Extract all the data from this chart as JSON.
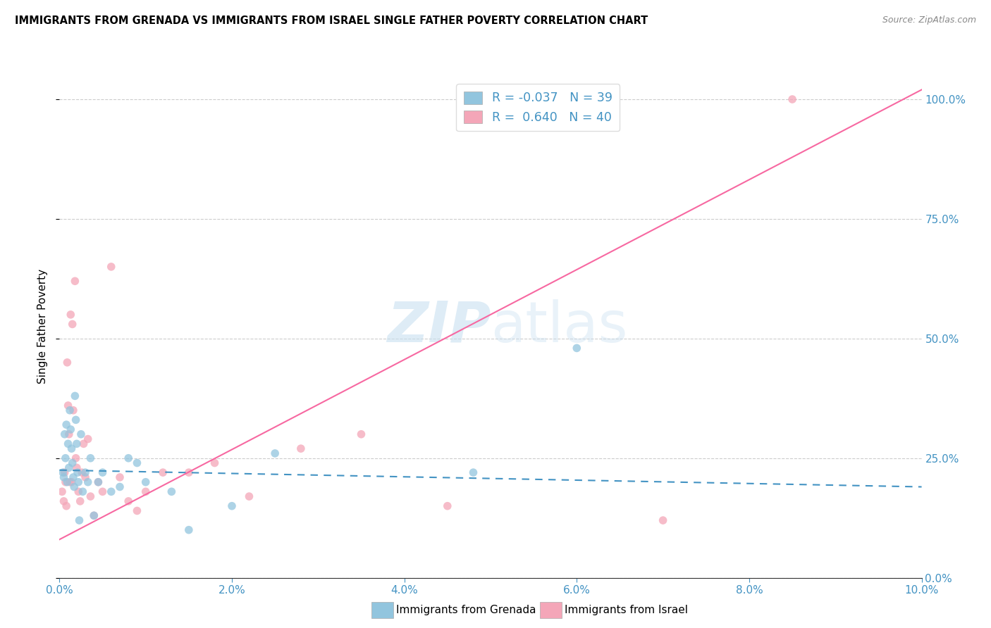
{
  "title": "IMMIGRANTS FROM GRENADA VS IMMIGRANTS FROM ISRAEL SINGLE FATHER POVERTY CORRELATION CHART",
  "source": "Source: ZipAtlas.com",
  "ylabel": "Single Father Poverty",
  "legend_label1": "Immigrants from Grenada",
  "legend_label2": "Immigrants from Israel",
  "R1": "-0.037",
  "N1": "39",
  "R2": "0.640",
  "N2": "40",
  "color1": "#92c5de",
  "color2": "#f4a6b8",
  "color1_line": "#4393c3",
  "color2_line": "#f768a1",
  "watermark_zip": "ZIP",
  "watermark_atlas": "atlas",
  "grenada_x": [
    0.0004,
    0.0005,
    0.0006,
    0.0007,
    0.0008,
    0.0009,
    0.001,
    0.0011,
    0.0012,
    0.0013,
    0.0014,
    0.0015,
    0.0016,
    0.0017,
    0.0018,
    0.0019,
    0.002,
    0.0021,
    0.0022,
    0.0023,
    0.0025,
    0.0027,
    0.003,
    0.0033,
    0.0036,
    0.004,
    0.0045,
    0.005,
    0.006,
    0.007,
    0.008,
    0.009,
    0.01,
    0.013,
    0.015,
    0.02,
    0.025,
    0.048,
    0.06
  ],
  "grenada_y": [
    0.22,
    0.21,
    0.3,
    0.25,
    0.32,
    0.2,
    0.28,
    0.23,
    0.35,
    0.31,
    0.27,
    0.24,
    0.21,
    0.19,
    0.38,
    0.33,
    0.28,
    0.22,
    0.2,
    0.12,
    0.3,
    0.18,
    0.22,
    0.2,
    0.25,
    0.13,
    0.2,
    0.22,
    0.18,
    0.19,
    0.25,
    0.24,
    0.2,
    0.18,
    0.1,
    0.15,
    0.26,
    0.22,
    0.48
  ],
  "israel_x": [
    0.0003,
    0.0005,
    0.0006,
    0.0007,
    0.0008,
    0.0009,
    0.001,
    0.0011,
    0.0012,
    0.0013,
    0.0014,
    0.0015,
    0.0016,
    0.0018,
    0.0019,
    0.002,
    0.0022,
    0.0024,
    0.0026,
    0.0028,
    0.003,
    0.0033,
    0.0036,
    0.004,
    0.0045,
    0.005,
    0.006,
    0.007,
    0.008,
    0.009,
    0.01,
    0.012,
    0.015,
    0.018,
    0.022,
    0.028,
    0.035,
    0.045,
    0.07,
    0.085
  ],
  "israel_y": [
    0.18,
    0.16,
    0.22,
    0.2,
    0.15,
    0.45,
    0.36,
    0.3,
    0.2,
    0.55,
    0.2,
    0.53,
    0.35,
    0.62,
    0.25,
    0.23,
    0.18,
    0.16,
    0.22,
    0.28,
    0.21,
    0.29,
    0.17,
    0.13,
    0.2,
    0.18,
    0.65,
    0.21,
    0.16,
    0.14,
    0.18,
    0.22,
    0.22,
    0.24,
    0.17,
    0.27,
    0.3,
    0.15,
    0.12,
    1.0
  ],
  "xmin": 0.0,
  "xmax": 0.1,
  "ymin": 0.0,
  "ymax": 1.05,
  "yticks": [
    0.0,
    0.25,
    0.5,
    0.75,
    1.0
  ],
  "xticks": [
    0.0,
    0.02,
    0.04,
    0.06,
    0.08,
    0.1
  ],
  "israel_line_x0": 0.0,
  "israel_line_x1": 0.1,
  "israel_line_y0": 0.08,
  "israel_line_y1": 1.02,
  "grenada_line_x0": 0.0,
  "grenada_line_x1": 0.1,
  "grenada_line_y0": 0.225,
  "grenada_line_y1": 0.19
}
